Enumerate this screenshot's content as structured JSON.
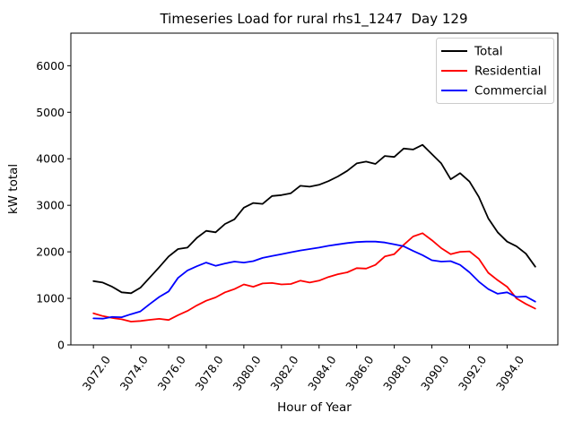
{
  "figure": {
    "title": "Timeseries Load for rural rhs1_1247  Day 129",
    "xlabel": "Hour of Year",
    "ylabel": "kW total"
  },
  "chart_data": {
    "type": "line",
    "title": "Timeseries Load for rural rhs1_1247  Day 129",
    "xlabel": "Hour of Year",
    "ylabel": "kW total",
    "grid": false,
    "legend_position": "upper right",
    "xlim": [
      3070.8,
      3096.7
    ],
    "ylim": [
      0,
      6700
    ],
    "xticks": [
      3072,
      3074,
      3076,
      3078,
      3080,
      3082,
      3084,
      3086,
      3088,
      3090,
      3092,
      3094
    ],
    "xtick_labels": [
      "3072.0",
      "3074.0",
      "3076.0",
      "3078.0",
      "3080.0",
      "3082.0",
      "3084.0",
      "3086.0",
      "3088.0",
      "3090.0",
      "3092.0",
      "3094.0"
    ],
    "yticks": [
      0,
      1000,
      2000,
      3000,
      4000,
      5000,
      6000
    ],
    "ytick_labels": [
      "0",
      "1000",
      "2000",
      "3000",
      "4000",
      "5000",
      "6000"
    ],
    "x": [
      3072,
      3072.5,
      3073,
      3073.5,
      3074,
      3074.5,
      3075,
      3075.5,
      3076,
      3076.5,
      3077,
      3077.5,
      3078,
      3078.5,
      3079,
      3079.5,
      3080,
      3080.5,
      3081,
      3081.5,
      3082,
      3082.5,
      3083,
      3083.5,
      3084,
      3084.5,
      3085,
      3085.5,
      3086,
      3086.5,
      3087,
      3087.5,
      3088,
      3088.5,
      3089,
      3089.5,
      3090,
      3090.5,
      3091,
      3091.5,
      3092,
      3092.5,
      3093,
      3093.5,
      3094,
      3094.5,
      3095,
      3095.5
    ],
    "series": [
      {
        "name": "Total",
        "color": "#000000",
        "values": [
          1370,
          1340,
          1250,
          1130,
          1110,
          1230,
          1450,
          1670,
          1900,
          2060,
          2090,
          2300,
          2450,
          2420,
          2600,
          2700,
          2950,
          3050,
          3030,
          3200,
          3220,
          3260,
          3420,
          3400,
          3440,
          3520,
          3620,
          3740,
          3900,
          3940,
          3890,
          4060,
          4040,
          4220,
          4200,
          4300,
          4100,
          3900,
          3560,
          3690,
          3510,
          3180,
          2720,
          2420,
          2220,
          2120,
          1960,
          1680
        ]
      },
      {
        "name": "Residential",
        "color": "#ff0000",
        "values": [
          680,
          620,
          580,
          550,
          500,
          515,
          540,
          560,
          535,
          640,
          730,
          850,
          950,
          1020,
          1130,
          1200,
          1300,
          1250,
          1320,
          1330,
          1300,
          1310,
          1380,
          1340,
          1380,
          1460,
          1520,
          1560,
          1650,
          1640,
          1720,
          1900,
          1950,
          2150,
          2330,
          2400,
          2250,
          2080,
          1950,
          2000,
          2010,
          1850,
          1550,
          1390,
          1250,
          1000,
          880,
          780
        ]
      },
      {
        "name": "Commercial",
        "color": "#0000ff",
        "values": [
          570,
          565,
          600,
          595,
          660,
          720,
          880,
          1030,
          1150,
          1440,
          1600,
          1690,
          1770,
          1700,
          1750,
          1790,
          1770,
          1800,
          1870,
          1910,
          1950,
          1990,
          2030,
          2060,
          2090,
          2130,
          2160,
          2190,
          2210,
          2220,
          2220,
          2200,
          2160,
          2120,
          2020,
          1930,
          1820,
          1790,
          1800,
          1720,
          1560,
          1360,
          1200,
          1100,
          1130,
          1030,
          1040,
          930
        ]
      }
    ]
  }
}
